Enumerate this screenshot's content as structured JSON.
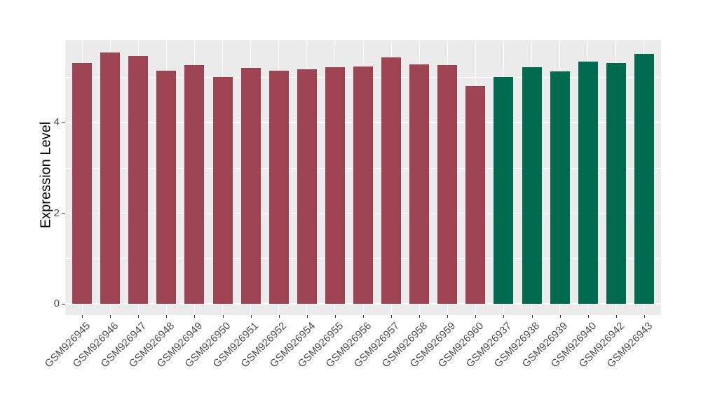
{
  "figure": {
    "background": "#FFFFFF",
    "panel_background": "#EBEBEB",
    "grid_color": "#FFFFFF",
    "axis_text_color": "#4D4D4D",
    "axis_title_color": "#000000",
    "tick_color": "#333333"
  },
  "chart_data": {
    "type": "bar",
    "title": "",
    "xlabel": "",
    "ylabel": "Expression Level",
    "ylim": [
      0,
      5.82
    ],
    "yticks": [
      0,
      2,
      4
    ],
    "yticks_minor": [
      1,
      3,
      5
    ],
    "grid": true,
    "legend": false,
    "x_label_angle": 45,
    "categories": [
      "GSM926945",
      "GSM926946",
      "GSM926947",
      "GSM926948",
      "GSM926949",
      "GSM926950",
      "GSM926951",
      "GSM926952",
      "GSM926954",
      "GSM926955",
      "GSM926956",
      "GSM926957",
      "GSM926958",
      "GSM926959",
      "GSM926960",
      "GSM926937",
      "GSM926938",
      "GSM926939",
      "GSM926940",
      "GSM926942",
      "GSM926943"
    ],
    "values": [
      5.32,
      5.55,
      5.46,
      5.15,
      5.26,
      5.01,
      5.21,
      5.14,
      5.17,
      5.22,
      5.23,
      5.43,
      5.28,
      5.27,
      4.8,
      5.0,
      5.22,
      5.13,
      5.34,
      5.32,
      5.51
    ],
    "groups": [
      1,
      1,
      1,
      1,
      1,
      1,
      1,
      1,
      1,
      1,
      1,
      1,
      1,
      1,
      1,
      2,
      2,
      2,
      2,
      2,
      2
    ],
    "group_colors": {
      "1": "#9E4452",
      "2": "#006B4E"
    }
  }
}
